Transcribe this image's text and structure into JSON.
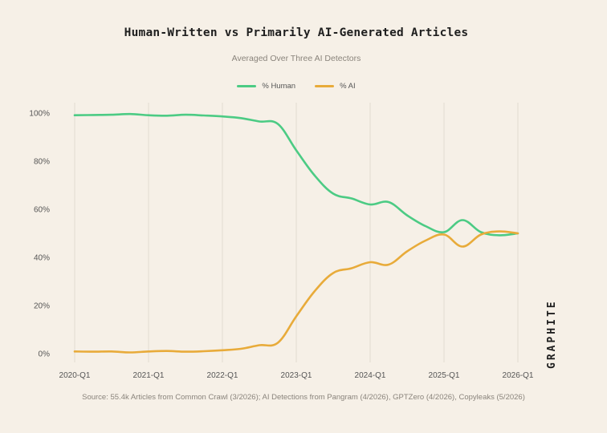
{
  "header": {
    "title": "Human-Written vs Primarily AI-Generated Articles",
    "subtitle": "Averaged Over Three AI Detectors"
  },
  "footer": {
    "source": "Source: 55.4k Articles from Common Crawl (3/2026); AI Detections from Pangram (4/2026), GPTZero (4/2026), Copyleaks (5/2026)"
  },
  "brand": {
    "logo_text": "GRAPHITE"
  },
  "colors": {
    "human": "#4ccb84",
    "ai": "#e8ab3a",
    "grid": "#e1dbd1"
  },
  "chart_data": {
    "type": "line",
    "title": "Human-Written vs Primarily AI-Generated Articles",
    "subtitle": "Averaged Over Three AI Detectors",
    "xlabel": "",
    "ylabel": "",
    "x_ticks": [
      "2020-Q1",
      "2021-Q1",
      "2022-Q1",
      "2023-Q1",
      "2024-Q1",
      "2025-Q1",
      "2026-Q1"
    ],
    "y_ticks": [
      "0%",
      "20%",
      "40%",
      "60%",
      "80%",
      "100%"
    ],
    "ylim": [
      0,
      100
    ],
    "grid": "vertical",
    "legend": "top-center",
    "x": [
      "2020-Q1",
      "2020-Q2",
      "2020-Q3",
      "2020-Q4",
      "2021-Q1",
      "2021-Q2",
      "2021-Q3",
      "2021-Q4",
      "2022-Q1",
      "2022-Q2",
      "2022-Q3",
      "2022-Q4",
      "2023-Q1",
      "2023-Q2",
      "2023-Q3",
      "2023-Q4",
      "2024-Q1",
      "2024-Q2",
      "2024-Q3",
      "2024-Q4",
      "2025-Q1",
      "2025-Q2",
      "2025-Q3",
      "2025-Q4",
      "2026-Q1"
    ],
    "series": [
      {
        "name": "% Human",
        "color": "#4ccb84",
        "values": [
          99.1,
          99.2,
          99.3,
          99.6,
          99.1,
          98.9,
          99.3,
          99.0,
          98.6,
          97.9,
          96.5,
          95.5,
          84.5,
          74.0,
          66.5,
          64.5,
          62.0,
          63.0,
          57.5,
          53.0,
          50.5,
          55.5,
          50.5,
          49.2,
          50.0
        ]
      },
      {
        "name": "% AI",
        "color": "#e8ab3a",
        "values": [
          0.9,
          0.8,
          0.9,
          0.5,
          0.9,
          1.1,
          0.8,
          1.0,
          1.4,
          2.0,
          3.5,
          4.5,
          15.5,
          26.0,
          33.5,
          35.5,
          38.0,
          37.0,
          42.5,
          47.0,
          49.5,
          44.5,
          49.5,
          50.8,
          50.0
        ]
      }
    ]
  }
}
